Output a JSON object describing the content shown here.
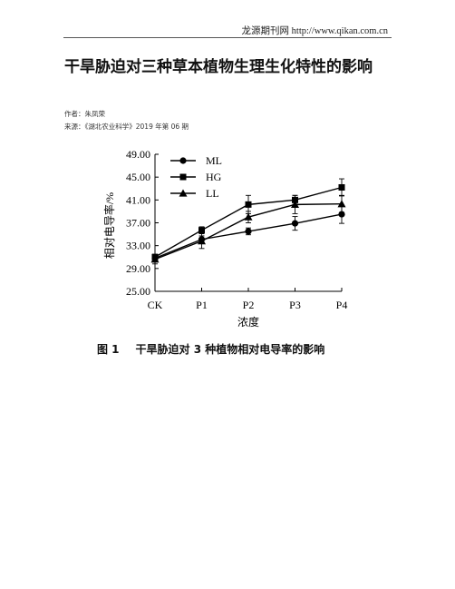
{
  "header": {
    "site": "龙源期刊网 http://www.qikan.com.cn"
  },
  "article": {
    "title": "干旱胁迫对三种草本植物生理生化特性的影响",
    "author_line": "作者：朱凤荣",
    "source_line": "来源：《湖北农业科学》2019 年第 06 期"
  },
  "figure": {
    "caption_number": "图 1",
    "caption_text": "干旱胁迫对 3 种植物相对电导率的影响"
  },
  "chart_data": {
    "type": "line",
    "categories": [
      "CK",
      "P1",
      "P2",
      "P3",
      "P4"
    ],
    "xlabel": "浓度",
    "ylabel": "相对电导率/%",
    "ylim": [
      25,
      49
    ],
    "yticks": [
      "25.00",
      "29.00",
      "33.00",
      "37.00",
      "41.00",
      "45.00",
      "49.00"
    ],
    "grid": false,
    "legend_position": "top-left",
    "series": [
      {
        "name": "ML",
        "marker": "circle",
        "values": [
          30.8,
          34.1,
          35.5,
          36.9,
          38.5
        ],
        "errors": [
          0.5,
          0.6,
          0.6,
          1.2,
          1.6
        ]
      },
      {
        "name": "HG",
        "marker": "square",
        "values": [
          31.0,
          35.7,
          40.2,
          41.0,
          43.2
        ],
        "errors": [
          0.5,
          0.6,
          1.6,
          0.8,
          1.5
        ]
      },
      {
        "name": "LL",
        "marker": "triangle",
        "values": [
          30.6,
          33.8,
          38.0,
          40.2,
          40.3
        ],
        "errors": [
          0.8,
          1.3,
          1.0,
          1.6,
          1.5
        ]
      }
    ]
  }
}
